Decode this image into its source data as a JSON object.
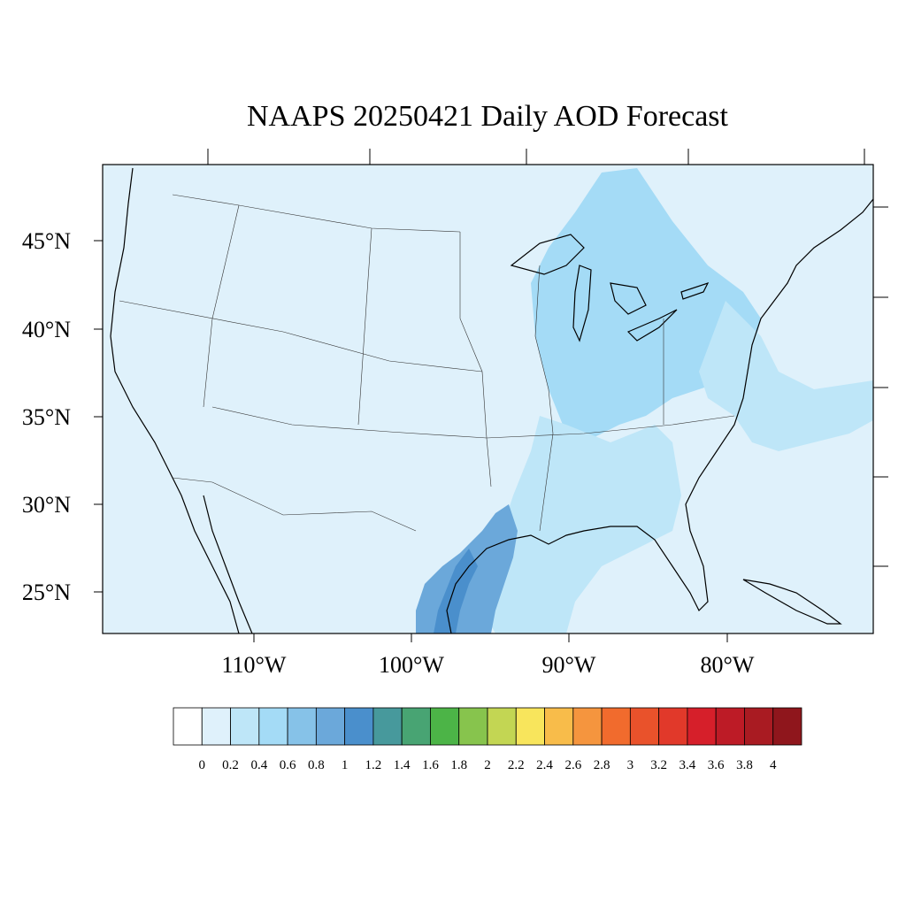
{
  "map": {
    "title": "NAAPS 20250421 Daily AOD Forecast",
    "variable": "AOD",
    "projection": "Lambert conformal, continental United States",
    "background_level_color": "#dff1fb",
    "lat_labels": [
      "45°N",
      "40°N",
      "35°N",
      "30°N",
      "25°N"
    ],
    "lon_labels": [
      "110°W",
      "100°W",
      "90°W",
      "80°W"
    ],
    "plumes": [
      {
        "name": "great-lakes-ohio-valley",
        "level": 0.4,
        "color": "#a4dbf6"
      },
      {
        "name": "mississippi-valley",
        "level": 0.2,
        "color": "#bee6f8"
      },
      {
        "name": "atlantic-offshore",
        "level": 0.2,
        "color": "#bee6f8"
      },
      {
        "name": "texas-gulf-coast",
        "level": 0.8,
        "color": "#6ba8da"
      },
      {
        "name": "south-texas-core",
        "level": 1.0,
        "color": "#4a8fcc"
      }
    ]
  },
  "colorbar": {
    "labels": [
      "0",
      "0.2",
      "0.4",
      "0.6",
      "0.8",
      "1",
      "1.2",
      "1.4",
      "1.6",
      "1.8",
      "2",
      "2.2",
      "2.4",
      "2.6",
      "2.8",
      "3",
      "3.2",
      "3.4",
      "3.6",
      "3.8",
      "4"
    ],
    "colors": [
      "#ffffff",
      "#dff1fb",
      "#bee6f8",
      "#a4dbf6",
      "#86c2e8",
      "#6ba8da",
      "#4a8fcc",
      "#47999c",
      "#48a473",
      "#4cb447",
      "#87c44d",
      "#c3d653",
      "#f8e55c",
      "#f8bc4a",
      "#f5953e",
      "#f16b2d",
      "#e9522b",
      "#e1392a",
      "#d61f2a",
      "#bd1b26",
      "#a91b22",
      "#8f161c"
    ]
  }
}
